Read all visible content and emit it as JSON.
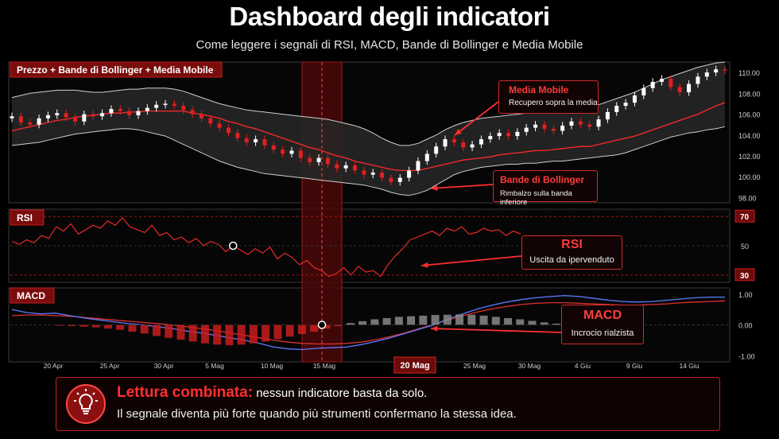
{
  "header": {
    "title": "Dashboard degli indicatori",
    "subtitle": "Come leggere i segnali di RSI, MACD, Bande di Bollinger e Media Mobile"
  },
  "panels": {
    "price_label": "Prezzo  +  Bande di Bollinger  +  Media Mobile",
    "rsi_label": "RSI",
    "macd_label": "MACD"
  },
  "callouts": {
    "media_mobile": {
      "title": "Media Mobile",
      "text": "Recupero sopra la media"
    },
    "bollinger": {
      "title": "Bande di Bollinger",
      "text": "Rimbalzo sulla banda inferiore"
    },
    "rsi": {
      "title": "RSI",
      "text": "Uscita da ipervenduto"
    },
    "macd": {
      "title": "MACD",
      "text": "Incrocio rialzista"
    }
  },
  "footer": {
    "strong": "Lettura combinata:",
    "line1": "nessun indicatore basta da solo.",
    "line2": "Il segnale diventa più forte quando più strumenti confermano la stessa idea."
  },
  "icons": {
    "footer": "lightbulb-icon"
  },
  "colors": {
    "accent": "#ff2a2a",
    "up_candle": "#ffffff",
    "down_candle": "#e02020",
    "band": "#cfcfcf",
    "macd_line": "#5d7bff",
    "signal_line": "#e03030"
  },
  "chart_data": {
    "type": "line",
    "x_ticks": [
      "20 Apr",
      "25 Apr",
      "30 Apr",
      "5 Mag",
      "10 Mag",
      "15 Mag",
      "20 Mag",
      "25 Mag",
      "30 Mag",
      "4 Giu",
      "9 Giu",
      "14 Giu"
    ],
    "highlight_date": "20 Mag",
    "price": {
      "y_ticks": [
        98.0,
        100.0,
        102.0,
        104.0,
        106.0,
        108.0,
        110.0
      ],
      "ylim": [
        97.5,
        111.0
      ],
      "close": [
        105.8,
        105.2,
        105.0,
        105.6,
        105.9,
        106.1,
        105.7,
        105.3,
        106.0,
        105.8,
        106.1,
        106.5,
        106.3,
        105.9,
        106.3,
        106.6,
        106.9,
        107.0,
        106.8,
        106.4,
        106.0,
        105.6,
        105.1,
        104.7,
        104.2,
        103.7,
        103.3,
        103.6,
        103.0,
        102.6,
        102.2,
        102.5,
        101.8,
        101.4,
        101.8,
        101.2,
        100.8,
        101.1,
        100.6,
        100.2,
        100.4,
        99.9,
        99.5,
        99.9,
        100.6,
        101.5,
        102.2,
        102.9,
        103.6,
        103.3,
        102.8,
        103.1,
        103.6,
        103.9,
        104.2,
        103.9,
        104.3,
        104.7,
        105.0,
        104.6,
        104.4,
        104.9,
        105.3,
        105.0,
        104.8,
        105.5,
        106.2,
        106.8,
        107.1,
        107.8,
        108.5,
        109.1,
        109.4,
        108.6,
        108.1,
        108.9,
        109.6,
        110.0,
        110.3,
        110.2
      ],
      "ma": [
        104.4,
        104.6,
        104.8,
        105.0,
        105.2,
        105.4,
        105.5,
        105.7,
        105.8,
        105.9,
        106.0,
        106.1,
        106.1,
        106.2,
        106.2,
        106.3,
        106.3,
        106.3,
        106.3,
        106.3,
        106.1,
        106.0,
        105.8,
        105.6,
        105.3,
        105.1,
        104.8,
        104.6,
        104.3,
        104.0,
        103.7,
        103.4,
        103.1,
        102.8,
        102.6,
        102.3,
        102.0,
        101.8,
        101.5,
        101.3,
        101.1,
        100.9,
        100.7,
        100.6,
        100.6,
        100.6,
        100.8,
        101.0,
        101.2,
        101.4,
        101.6,
        101.7,
        101.8,
        101.9,
        102.1,
        102.2,
        102.3,
        102.4,
        102.5,
        102.5,
        102.6,
        102.7,
        102.8,
        102.9,
        102.9,
        103.1,
        103.3,
        103.5,
        103.7,
        103.9,
        104.2,
        104.5,
        104.8,
        105.1,
        105.4,
        105.7,
        106.0,
        106.4,
        106.8,
        107.1
      ],
      "upper_band": [
        107.6,
        107.8,
        108.0,
        108.1,
        108.2,
        108.3,
        108.3,
        108.3,
        108.2,
        108.1,
        108.1,
        108.2,
        108.3,
        108.4,
        108.4,
        108.5,
        108.5,
        108.5,
        108.4,
        108.2,
        107.9,
        107.6,
        107.3,
        107.0,
        106.8,
        106.6,
        106.4,
        106.3,
        106.2,
        106.1,
        106.0,
        105.9,
        105.8,
        105.7,
        105.6,
        105.5,
        105.3,
        105.1,
        104.9,
        104.6,
        104.2,
        103.7,
        103.3,
        103.0,
        103.0,
        103.2,
        103.6,
        104.0,
        104.5,
        104.9,
        105.2,
        105.4,
        105.6,
        105.7,
        105.8,
        105.9,
        106.0,
        106.1,
        106.2,
        106.3,
        106.3,
        106.4,
        106.5,
        106.6,
        106.7,
        106.9,
        107.2,
        107.5,
        107.8,
        108.1,
        108.5,
        108.9,
        109.3,
        109.6,
        109.9,
        110.2,
        110.5,
        110.7,
        110.9,
        111.0
      ],
      "lower_band": [
        103.0,
        103.1,
        103.2,
        103.3,
        103.5,
        103.7,
        103.9,
        104.1,
        104.2,
        104.3,
        104.4,
        104.5,
        104.6,
        104.6,
        104.5,
        104.3,
        104.1,
        103.9,
        103.5,
        103.1,
        102.7,
        102.3,
        101.9,
        101.5,
        101.2,
        100.9,
        100.7,
        100.5,
        100.3,
        100.2,
        100.1,
        100.0,
        99.9,
        99.8,
        99.7,
        99.6,
        99.5,
        99.4,
        99.3,
        99.2,
        99.0,
        98.8,
        98.5,
        98.3,
        98.2,
        98.4,
        98.7,
        99.2,
        99.7,
        100.2,
        100.5,
        100.7,
        100.9,
        101.0,
        101.1,
        101.2,
        101.2,
        101.3,
        101.3,
        101.4,
        101.5,
        101.5,
        101.6,
        101.7,
        101.8,
        101.9,
        102.0,
        102.1,
        102.3,
        102.6,
        102.9,
        103.2,
        103.5,
        103.8,
        104.0,
        104.2,
        104.3,
        104.5,
        104.6,
        104.8
      ]
    },
    "rsi": {
      "y_ticks": [
        30,
        50,
        70
      ],
      "ylim": [
        25,
        75
      ],
      "values": [
        53,
        51,
        54,
        52,
        57,
        55,
        63,
        60,
        65,
        58,
        61,
        64,
        62,
        67,
        64,
        69,
        63,
        61,
        59,
        64,
        57,
        59,
        54,
        56,
        52,
        55,
        50,
        53,
        51,
        46,
        50,
        47,
        44,
        48,
        45,
        49,
        41,
        45,
        42,
        37,
        40,
        35,
        33,
        29,
        31,
        35,
        30,
        36,
        32,
        33,
        29,
        37,
        43,
        48,
        54,
        56,
        58,
        60,
        57,
        62,
        60,
        63,
        58,
        59,
        62,
        60,
        61,
        57,
        60,
        58
      ],
      "signal_point": 30
    },
    "macd": {
      "y_ticks": [
        1.0,
        0.0,
        -1.0
      ],
      "ylim": [
        -1.2,
        1.2
      ],
      "macd_line": [
        0.5,
        0.4,
        0.36,
        0.38,
        0.3,
        0.22,
        0.16,
        0.1,
        0.04,
        0.0,
        -0.06,
        -0.12,
        -0.2,
        -0.26,
        -0.34,
        -0.42,
        -0.5,
        -0.6,
        -0.72,
        -0.78,
        -0.8,
        -0.76,
        -0.74,
        -0.72,
        -0.64,
        -0.54,
        -0.42,
        -0.28,
        -0.14,
        0.0,
        0.2,
        0.36,
        0.52,
        0.64,
        0.74,
        0.82,
        0.88,
        0.92,
        0.95,
        0.92,
        0.86,
        0.8,
        0.76,
        0.74,
        0.76,
        0.8,
        0.84,
        0.88,
        0.9,
        0.9
      ],
      "signal_line": [
        0.3,
        0.32,
        0.32,
        0.3,
        0.28,
        0.24,
        0.2,
        0.16,
        0.12,
        0.08,
        0.04,
        0.0,
        -0.06,
        -0.12,
        -0.18,
        -0.26,
        -0.34,
        -0.42,
        -0.5,
        -0.56,
        -0.6,
        -0.62,
        -0.62,
        -0.6,
        -0.56,
        -0.48,
        -0.38,
        -0.26,
        -0.12,
        0.02,
        0.16,
        0.3,
        0.42,
        0.52,
        0.6,
        0.66,
        0.7,
        0.72,
        0.72,
        0.7,
        0.68,
        0.66,
        0.64,
        0.64,
        0.66,
        0.68,
        0.72,
        0.74,
        0.76,
        0.78
      ],
      "histogram": [
        -0.02,
        -0.04,
        -0.06,
        -0.08,
        -0.12,
        -0.16,
        -0.22,
        -0.28,
        -0.36,
        -0.42,
        -0.48,
        -0.54,
        -0.6,
        -0.64,
        -0.66,
        -0.64,
        -0.6,
        -0.54,
        -0.46,
        -0.38,
        -0.3,
        -0.22,
        -0.12,
        -0.04,
        0.06,
        0.12,
        0.18,
        0.22,
        0.26,
        0.28,
        0.3,
        0.32,
        0.33,
        0.34,
        0.33,
        0.3,
        0.26,
        0.22,
        0.18,
        0.13,
        0.08,
        0.04
      ],
      "crossover_value": 0.0
    }
  }
}
